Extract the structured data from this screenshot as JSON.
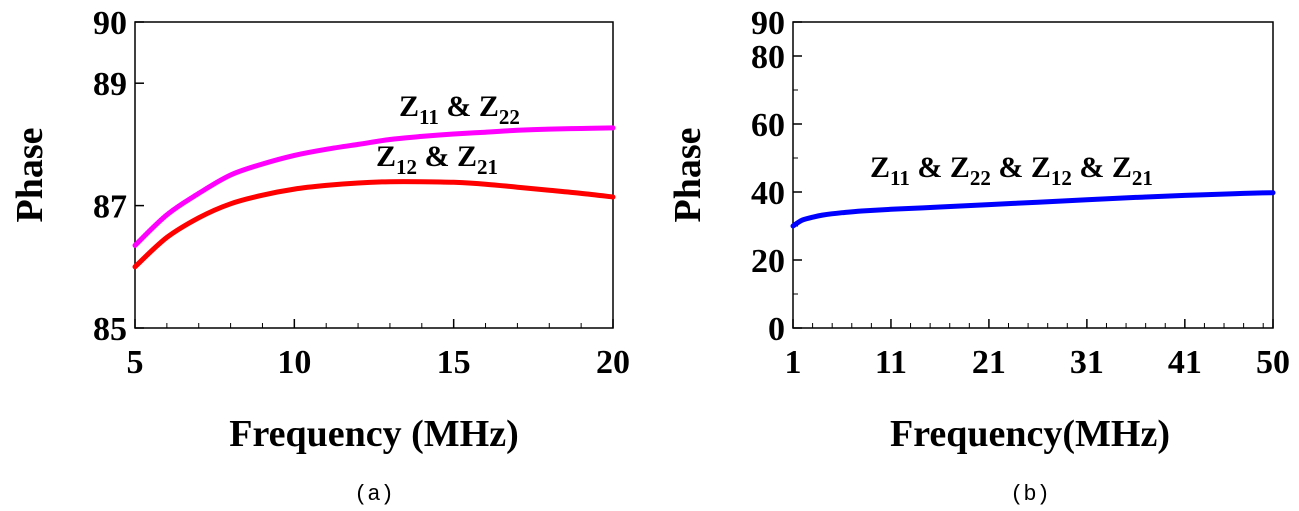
{
  "chart_data": [
    {
      "type": "line",
      "caption": "(a)",
      "xlabel": "Frequency (MHz)",
      "ylabel": "Phase",
      "xlim": [
        5,
        20
      ],
      "ylim": [
        85,
        90
      ],
      "xticks": [
        5,
        10,
        15,
        20
      ],
      "yticks": [
        85,
        87,
        89,
        90
      ],
      "grid": false,
      "series": [
        {
          "name": "Z11 & Z22",
          "label_main": "Z",
          "label_sub1": "11",
          "label_mid": " & Z",
          "label_sub2": "22",
          "color": "#ff00ff",
          "x": [
            5,
            6,
            7,
            8,
            9,
            10,
            11,
            12,
            13,
            14,
            15,
            16,
            17,
            18,
            19,
            20
          ],
          "y": [
            86.35,
            86.85,
            87.2,
            87.5,
            87.68,
            87.82,
            87.92,
            88.0,
            88.08,
            88.13,
            88.17,
            88.2,
            88.23,
            88.25,
            88.26,
            88.27
          ]
        },
        {
          "name": "Z12 & Z21",
          "label_main": "Z",
          "label_sub1": "12",
          "label_mid": " & Z",
          "label_sub2": "21",
          "color": "#ff0000",
          "x": [
            5,
            6,
            7,
            8,
            9,
            10,
            11,
            12,
            13,
            14,
            15,
            16,
            17,
            18,
            19,
            20
          ],
          "y": [
            86.0,
            86.48,
            86.8,
            87.03,
            87.17,
            87.27,
            87.33,
            87.37,
            87.39,
            87.39,
            87.38,
            87.35,
            87.3,
            87.25,
            87.2,
            87.14
          ]
        }
      ]
    },
    {
      "type": "line",
      "caption": "(b)",
      "xlabel": "Frequency(MHz)",
      "ylabel": "Phase",
      "xlim": [
        1,
        50
      ],
      "ylim": [
        0,
        90
      ],
      "xticks": [
        1,
        11,
        21,
        31,
        41,
        50
      ],
      "yticks": [
        0,
        20,
        40,
        60,
        80,
        90
      ],
      "grid": false,
      "series": [
        {
          "name": "Z11 & Z22 & Z12 & Z21",
          "color": "#0000ff",
          "x": [
            1,
            1.5,
            2,
            3,
            4,
            6,
            8,
            11,
            16,
            21,
            26,
            31,
            36,
            41,
            46,
            50
          ],
          "y": [
            30,
            31,
            31.8,
            32.6,
            33.2,
            33.9,
            34.4,
            34.9,
            35.6,
            36.3,
            37.0,
            37.7,
            38.4,
            39.0,
            39.5,
            39.8
          ]
        }
      ],
      "label_parts": [
        "Z",
        "11",
        " & Z",
        "22",
        " & Z",
        "12",
        " & Z",
        "21"
      ]
    }
  ]
}
